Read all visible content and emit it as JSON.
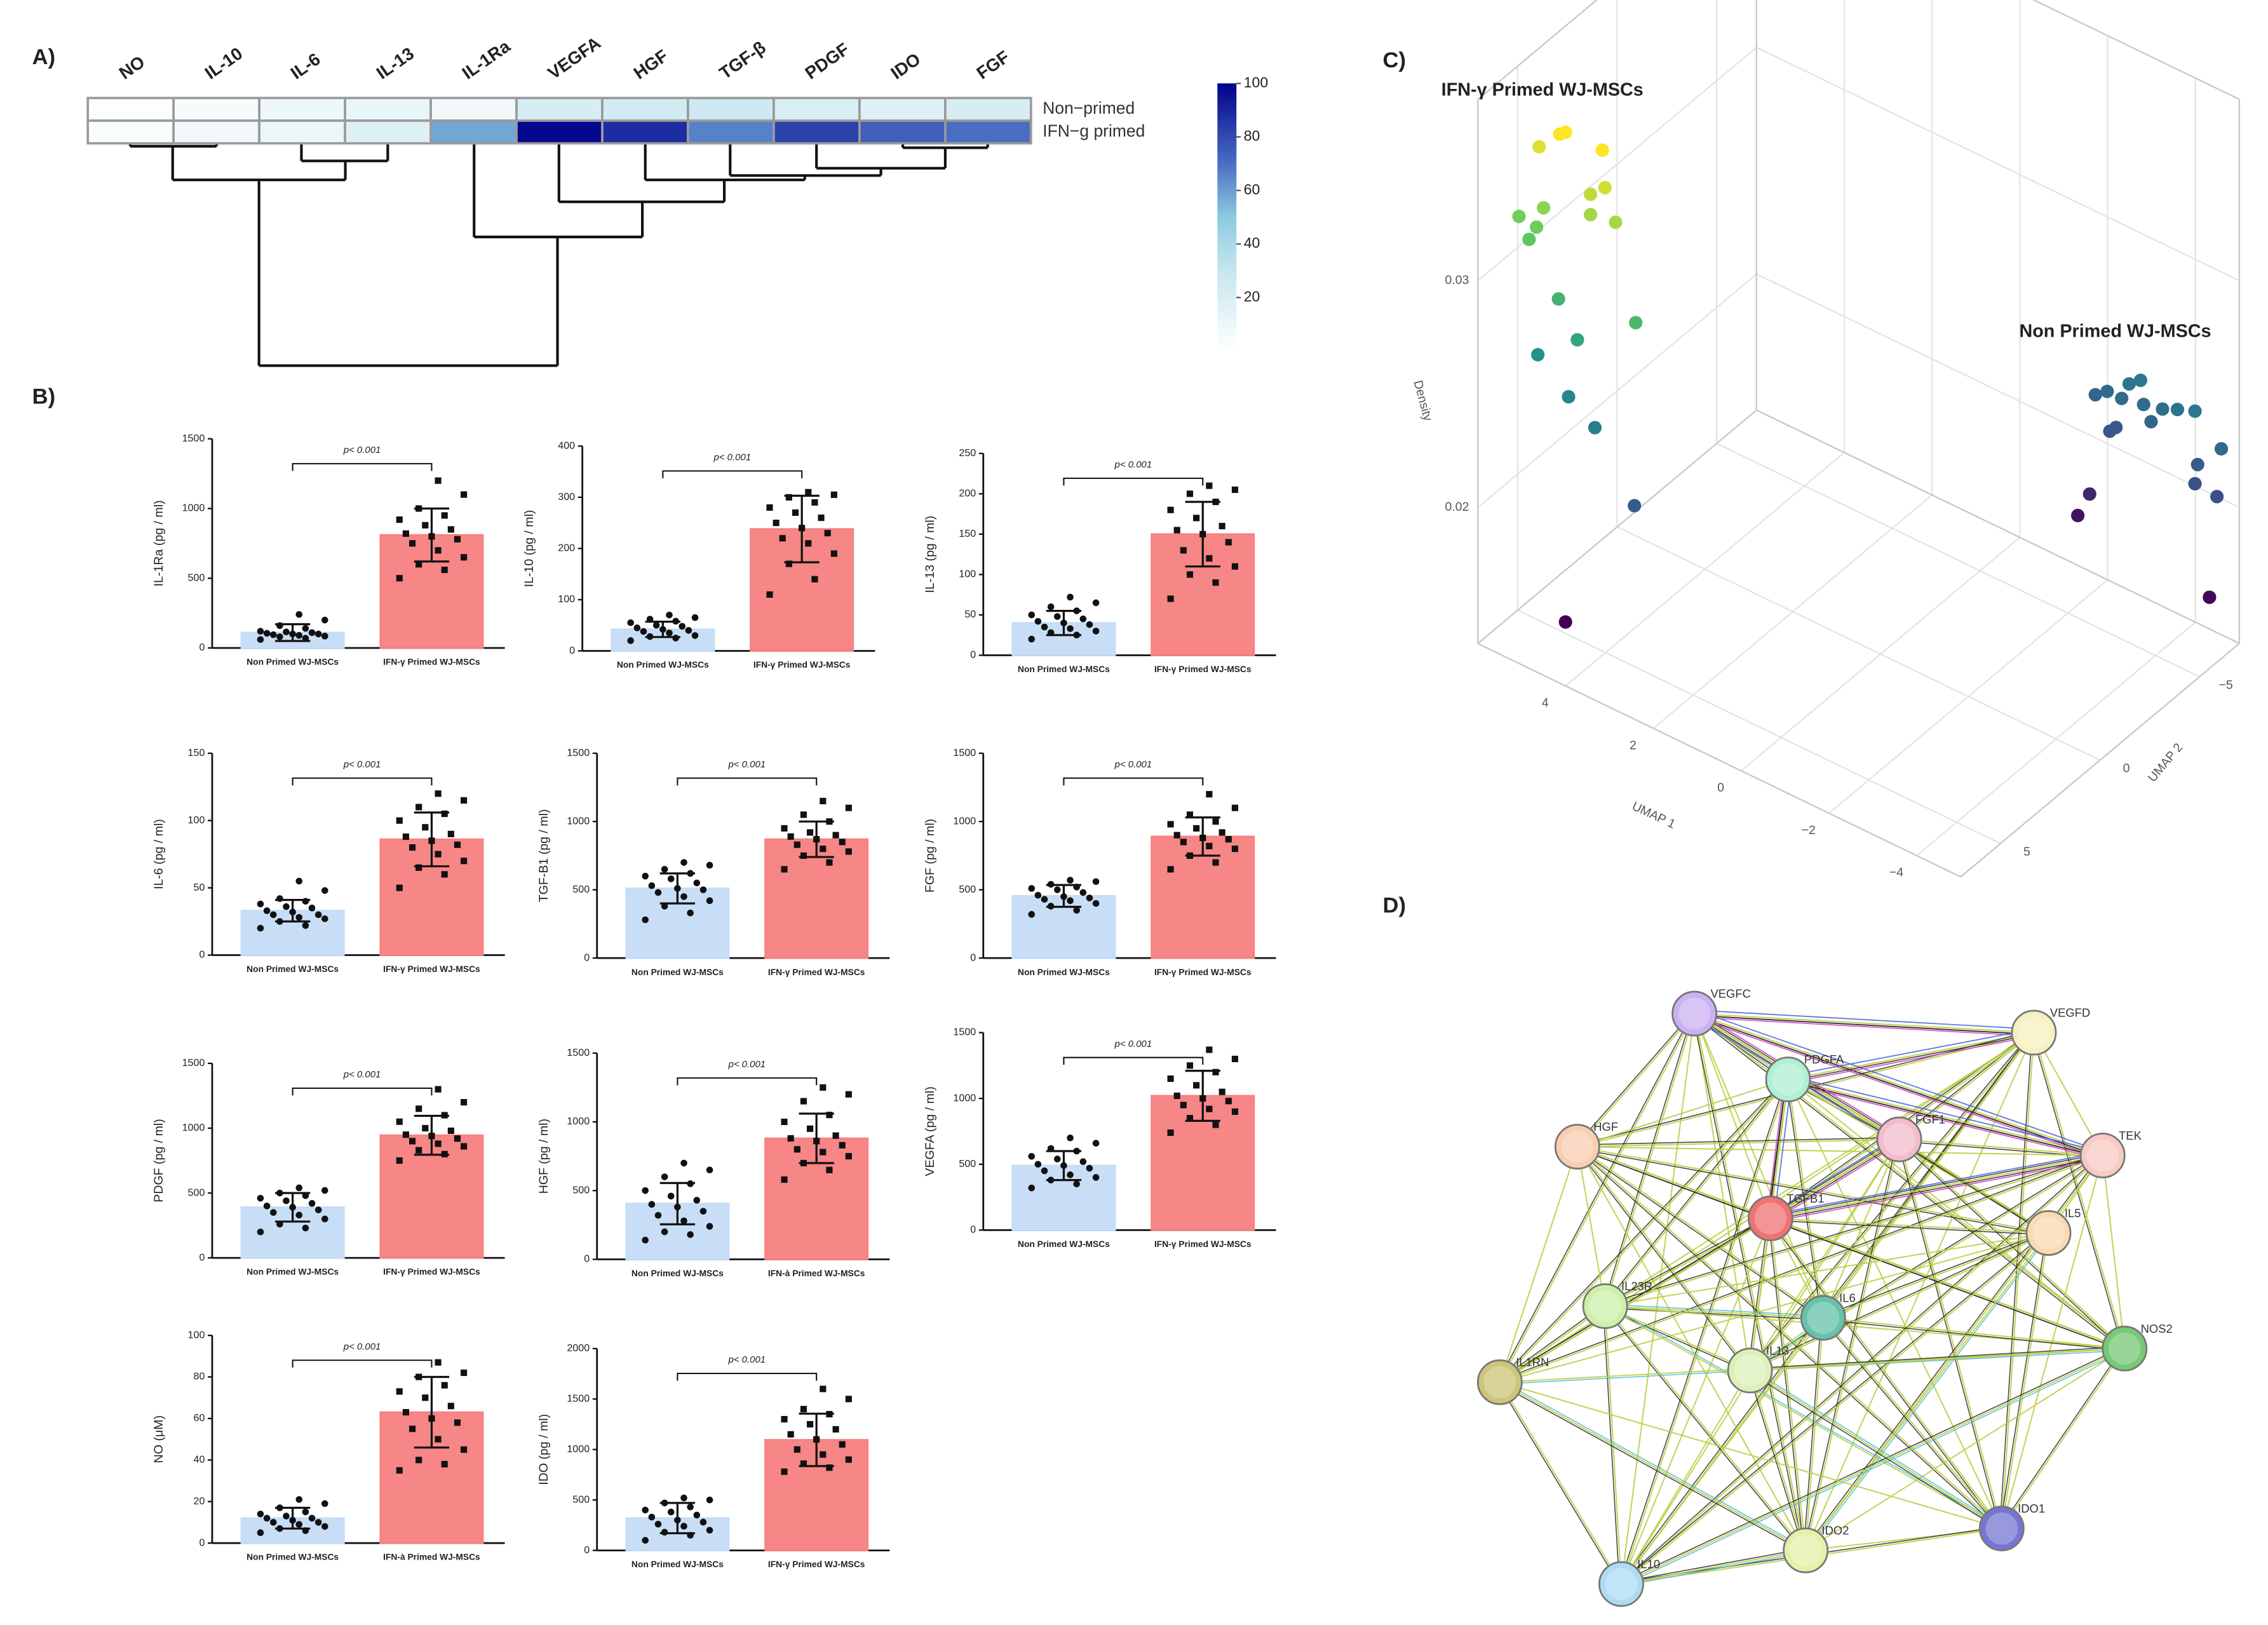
{
  "panel_labels": [
    "A)",
    "B)",
    "C)",
    "D)"
  ],
  "chart_data": [
    {
      "type": "heatmap",
      "columns": [
        "NO",
        "IL-10",
        "IL-6",
        "IL-13",
        "IL-1Ra",
        "VEGFA",
        "HGF",
        "TGF-β",
        "PDGF",
        "IDO",
        "FGF"
      ],
      "rows": [
        "Non−primed",
        "IFN−g primed"
      ],
      "values": [
        [
          2,
          5,
          9,
          12,
          8,
          22,
          24,
          26,
          20,
          18,
          22
        ],
        [
          4,
          8,
          11,
          18,
          58,
          98,
          88,
          66,
          82,
          74,
          70
        ]
      ],
      "zlim": [
        0,
        100
      ],
      "zticks": [
        20,
        40,
        60,
        80,
        100
      ],
      "colorscale": [
        [
          0,
          "#ffffff"
        ],
        [
          0.3,
          "#c6e6ef"
        ],
        [
          0.5,
          "#8ccbe0"
        ],
        [
          0.7,
          "#4a6fc2"
        ],
        [
          1,
          "#00008b"
        ]
      ]
    },
    {
      "type": "bar",
      "ylabel": "IL-1Ra (pg / ml)",
      "categories": [
        "Non Primed WJ-MSCs",
        "IFN-γ Primed WJ-MSCs"
      ],
      "values": [
        110,
        810
      ],
      "errors": [
        60,
        190
      ],
      "annotation": "p< 0.001",
      "ylim": [
        0,
        1500
      ],
      "yticks": [
        0,
        500,
        1000,
        1500
      ],
      "colors": [
        "#c5dcf7",
        "#f78080"
      ],
      "points": [
        [
          60,
          70,
          80,
          85,
          90,
          95,
          100,
          100,
          105,
          110,
          115,
          120,
          140,
          160,
          200,
          240
        ],
        [
          500,
          560,
          600,
          650,
          700,
          750,
          780,
          800,
          820,
          850,
          880,
          920,
          950,
          1000,
          1100,
          1200
        ]
      ]
    },
    {
      "type": "bar",
      "ylabel": "IL-10 (pg / ml)",
      "categories": [
        "Non Primed WJ-MSCs",
        "IFN-γ Primed WJ-MSCs"
      ],
      "values": [
        42,
        238
      ],
      "errors": [
        15,
        65
      ],
      "annotation": "p< 0.001",
      "ylim": [
        0,
        400
      ],
      "yticks": [
        0,
        100,
        200,
        300,
        400
      ],
      "colors": [
        "#c5dcf7",
        "#f78080"
      ],
      "points": [
        [
          20,
          25,
          28,
          30,
          35,
          38,
          40,
          42,
          45,
          48,
          50,
          55,
          58,
          62,
          65,
          70
        ],
        [
          110,
          140,
          170,
          190,
          210,
          220,
          230,
          240,
          250,
          260,
          270,
          280,
          290,
          300,
          305,
          310
        ]
      ]
    },
    {
      "type": "bar",
      "ylabel": "IL-13 (pg / ml)",
      "categories": [
        "Non Primed WJ-MSCs",
        "IFN-γ Primed WJ-MSCs"
      ],
      "values": [
        40,
        150
      ],
      "errors": [
        15,
        40
      ],
      "annotation": "p< 0.001",
      "ylim": [
        0,
        250
      ],
      "yticks": [
        0,
        50,
        100,
        150,
        200,
        250
      ],
      "colors": [
        "#c5dcf7",
        "#f78080"
      ],
      "points": [
        [
          20,
          25,
          28,
          30,
          33,
          35,
          38,
          40,
          42,
          45,
          48,
          50,
          55,
          60,
          65,
          72
        ],
        [
          70,
          90,
          100,
          110,
          120,
          130,
          140,
          150,
          155,
          160,
          170,
          180,
          190,
          200,
          205,
          210
        ]
      ]
    },
    {
      "type": "bar",
      "ylabel": "IL-6 (pg / ml)",
      "categories": [
        "Non Primed WJ-MSCs",
        "IFN-γ Primed WJ-MSCs"
      ],
      "values": [
        33,
        86
      ],
      "errors": [
        8,
        20
      ],
      "annotation": "p< 0.001",
      "ylim": [
        0,
        150
      ],
      "yticks": [
        0,
        50,
        100,
        150
      ],
      "colors": [
        "#c5dcf7",
        "#f78080"
      ],
      "points": [
        [
          20,
          22,
          25,
          27,
          28,
          30,
          30,
          32,
          33,
          35,
          36,
          38,
          40,
          42,
          48,
          55
        ],
        [
          50,
          60,
          65,
          70,
          75,
          80,
          82,
          85,
          88,
          90,
          95,
          100,
          105,
          110,
          115,
          120
        ]
      ]
    },
    {
      "type": "bar",
      "ylabel": "TGF-B1 (pg / ml)",
      "categories": [
        "Non Primed WJ-MSCs",
        "IFN-γ Primed WJ-MSCs"
      ],
      "values": [
        510,
        870
      ],
      "errors": [
        110,
        130
      ],
      "annotation": "p< 0.001",
      "ylim": [
        0,
        1500
      ],
      "yticks": [
        0,
        500,
        1000,
        1500
      ],
      "colors": [
        "#c5dcf7",
        "#f78080"
      ],
      "points": [
        [
          280,
          330,
          380,
          420,
          450,
          480,
          500,
          510,
          530,
          550,
          580,
          600,
          620,
          650,
          680,
          700
        ],
        [
          650,
          700,
          750,
          780,
          800,
          830,
          850,
          870,
          890,
          900,
          920,
          950,
          1000,
          1050,
          1100,
          1150
        ]
      ]
    },
    {
      "type": "bar",
      "ylabel": "FGF (pg / ml)",
      "categories": [
        "Non Primed WJ-MSCs",
        "IFN-γ Primed WJ-MSCs"
      ],
      "values": [
        455,
        890
      ],
      "errors": [
        80,
        140
      ],
      "annotation": "p< 0.001",
      "ylim": [
        0,
        1500
      ],
      "yticks": [
        0,
        500,
        1000,
        1500
      ],
      "colors": [
        "#c5dcf7",
        "#f78080"
      ],
      "points": [
        [
          320,
          350,
          380,
          400,
          420,
          430,
          440,
          450,
          460,
          480,
          500,
          510,
          520,
          540,
          560,
          570
        ],
        [
          650,
          700,
          750,
          800,
          820,
          850,
          870,
          880,
          900,
          920,
          950,
          980,
          1000,
          1050,
          1100,
          1200
        ]
      ]
    },
    {
      "type": "bar",
      "ylabel": "PDGF (pg / ml)",
      "categories": [
        "Non Primed WJ-MSCs",
        "IFN-γ Primed WJ-MSCs"
      ],
      "values": [
        390,
        945
      ],
      "errors": [
        110,
        150
      ],
      "annotation": "p< 0.001",
      "ylim": [
        0,
        1500
      ],
      "yticks": [
        0,
        500,
        1000,
        1500
      ],
      "colors": [
        "#c5dcf7",
        "#f78080"
      ],
      "points": [
        [
          200,
          230,
          260,
          300,
          330,
          350,
          370,
          390,
          400,
          420,
          440,
          460,
          480,
          500,
          520,
          540
        ],
        [
          750,
          800,
          830,
          860,
          880,
          900,
          920,
          940,
          950,
          980,
          1000,
          1050,
          1100,
          1150,
          1200,
          1300
        ]
      ]
    },
    {
      "type": "bar",
      "ylabel": "HGF (pg / ml)",
      "categories": [
        "Non Primed WJ-MSCs",
        "IFN-à Primed WJ-MSCs"
      ],
      "values": [
        405,
        880
      ],
      "errors": [
        150,
        180
      ],
      "annotation": "p< 0.001",
      "ylim": [
        0,
        1500
      ],
      "yticks": [
        0,
        500,
        1000,
        1500
      ],
      "colors": [
        "#c5dcf7",
        "#f78080"
      ],
      "points": [
        [
          140,
          180,
          200,
          240,
          280,
          320,
          350,
          380,
          400,
          430,
          460,
          500,
          550,
          600,
          650,
          700
        ],
        [
          580,
          650,
          700,
          750,
          780,
          800,
          830,
          860,
          880,
          900,
          950,
          1000,
          1050,
          1150,
          1200,
          1250
        ]
      ]
    },
    {
      "type": "bar",
      "ylabel": "VEGFA (pg / ml)",
      "categories": [
        "Non Primed WJ-MSCs",
        "IFN-γ Primed WJ-MSCs"
      ],
      "values": [
        490,
        1020
      ],
      "errors": [
        110,
        190
      ],
      "annotation": "p< 0.001",
      "ylim": [
        0,
        1500
      ],
      "yticks": [
        0,
        500,
        1000,
        1500
      ],
      "colors": [
        "#c5dcf7",
        "#f78080"
      ],
      "points": [
        [
          320,
          350,
          380,
          400,
          420,
          450,
          470,
          490,
          500,
          520,
          540,
          560,
          600,
          620,
          660,
          700
        ],
        [
          740,
          800,
          850,
          900,
          920,
          950,
          980,
          1000,
          1020,
          1050,
          1100,
          1150,
          1200,
          1250,
          1300,
          1370
        ]
      ]
    },
    {
      "type": "bar",
      "ylabel": "NO (μM)",
      "categories": [
        "Non Primed WJ-MSCs",
        "IFN-à Primed WJ-MSCs"
      ],
      "values": [
        12,
        63
      ],
      "errors": [
        5,
        17
      ],
      "annotation": "p< 0.001",
      "ylim": [
        0,
        100
      ],
      "yticks": [
        0,
        20,
        40,
        60,
        80,
        100
      ],
      "colors": [
        "#c5dcf7",
        "#f78080"
      ],
      "points": [
        [
          5,
          6,
          7,
          8,
          9,
          10,
          10,
          11,
          12,
          12,
          13,
          14,
          15,
          17,
          19,
          21
        ],
        [
          35,
          38,
          40,
          45,
          50,
          55,
          58,
          60,
          63,
          66,
          70,
          73,
          76,
          80,
          82,
          87
        ]
      ]
    },
    {
      "type": "bar",
      "ylabel": "IDO (pg / ml)",
      "categories": [
        "Non Primed WJ-MSCs",
        "IFN-γ Primed WJ-MSCs"
      ],
      "values": [
        320,
        1095
      ],
      "errors": [
        150,
        260
      ],
      "annotation": "p< 0.001",
      "ylim": [
        0,
        2000
      ],
      "yticks": [
        0,
        500,
        1000,
        1500,
        2000
      ],
      "colors": [
        "#c5dcf7",
        "#f78080"
      ],
      "points": [
        [
          100,
          150,
          180,
          200,
          240,
          260,
          280,
          300,
          330,
          350,
          380,
          400,
          430,
          470,
          500,
          520
        ],
        [
          780,
          820,
          860,
          900,
          950,
          1000,
          1050,
          1100,
          1150,
          1200,
          1250,
          1300,
          1350,
          1400,
          1500,
          1600
        ]
      ]
    },
    {
      "type": "scatter3d",
      "annotations": [
        "IFN-γ Primed WJ-MSCs",
        "Non Primed WJ-MSCs"
      ],
      "xlabel": "UMAP 1",
      "ylabel": "UMAP 2",
      "zlabel": "Density",
      "xlim": [
        -5,
        6
      ],
      "ylim": [
        -7,
        7
      ],
      "zlim": [
        0.014,
        0.038
      ],
      "xticks": [
        4,
        2,
        0,
        {
          "value": -2,
          "label": "−2"
        },
        {
          "value": -4,
          "label": "−4"
        }
      ],
      "yticks": [
        {
          "value": -5,
          "label": "−5"
        },
        0,
        5
      ],
      "zticks": [
        0.02,
        0.03
      ],
      "colorscale": "viridis",
      "color_range": [
        0.015,
        0.036
      ],
      "x": [
        5.51,
        5.04,
        4.91,
        4.07,
        5.97,
        5.41,
        5.57,
        5.74,
        4.34,
        4.01,
        4.34,
        3.77,
        5.07,
        3.31,
        4.64,
        5.54,
        4.84,
        4.24,
        3.34,
        4.91,
        -1.72,
        -1.99,
        -2.49,
        -2.75,
        -2.32,
        -2.82,
        -3.25,
        -3.59,
        -3.99,
        -2.19,
        -2.05,
        -2.99,
        -4.59,
        -4.05,
        -3.99,
        -4.49,
        -1.59,
        -1.32,
        -4.32
      ],
      "y": [
        5,
        5,
        5,
        5,
        5,
        5,
        5,
        5,
        5,
        5,
        5,
        5,
        5,
        5,
        5,
        5,
        5,
        5,
        5,
        5,
        -7,
        -7,
        -7,
        -7,
        -7,
        -7,
        -7,
        -7,
        -7,
        -7,
        -7,
        -7,
        -7,
        -7,
        -7,
        -7,
        -7,
        -7,
        -7
      ],
      "z": [
        0.0349,
        0.0359,
        0.0361,
        0.0361,
        0.0314,
        0.0323,
        0.0313,
        0.0306,
        0.0339,
        0.0345,
        0.033,
        0.0332,
        0.0286,
        0.0292,
        0.0272,
        0.0257,
        0.0245,
        0.0237,
        0.0211,
        0.0145,
        0.0219,
        0.0223,
        0.0231,
        0.0235,
        0.0223,
        0.0225,
        0.0227,
        0.023,
        0.0233,
        0.0209,
        0.0206,
        0.0219,
        0.0222,
        0.021,
        0.0201,
        0.02,
        0.0174,
        0.0162,
        0.0154
      ]
    }
  ],
  "network": {
    "nodes": [
      {
        "label": "VEGFC",
        "color": "#cbb0f2"
      },
      {
        "label": "VEGFD",
        "color": "#f6f1c0"
      },
      {
        "label": "PDGFA",
        "color": "#aef0d2"
      },
      {
        "label": "FGF1",
        "color": "#f2bccb"
      },
      {
        "label": "HGF",
        "color": "#f8ceb0"
      },
      {
        "label": "TEK",
        "color": "#f8cac4"
      },
      {
        "label": "TGFB1",
        "color": "#f07272"
      },
      {
        "label": "IL5",
        "color": "#f8dbb0"
      },
      {
        "label": "IL23R",
        "color": "#cdf0a8"
      },
      {
        "label": "IL6",
        "color": "#66c2aa"
      },
      {
        "label": "NOS2",
        "color": "#76c976"
      },
      {
        "label": "IL1RN",
        "color": "#cdc57a"
      },
      {
        "label": "IL13",
        "color": "#dcf1b8"
      },
      {
        "label": "IDO1",
        "color": "#7676d2"
      },
      {
        "label": "IDO2",
        "color": "#e4f1a8"
      },
      {
        "label": "IL10",
        "color": "#addcf2"
      }
    ]
  }
}
